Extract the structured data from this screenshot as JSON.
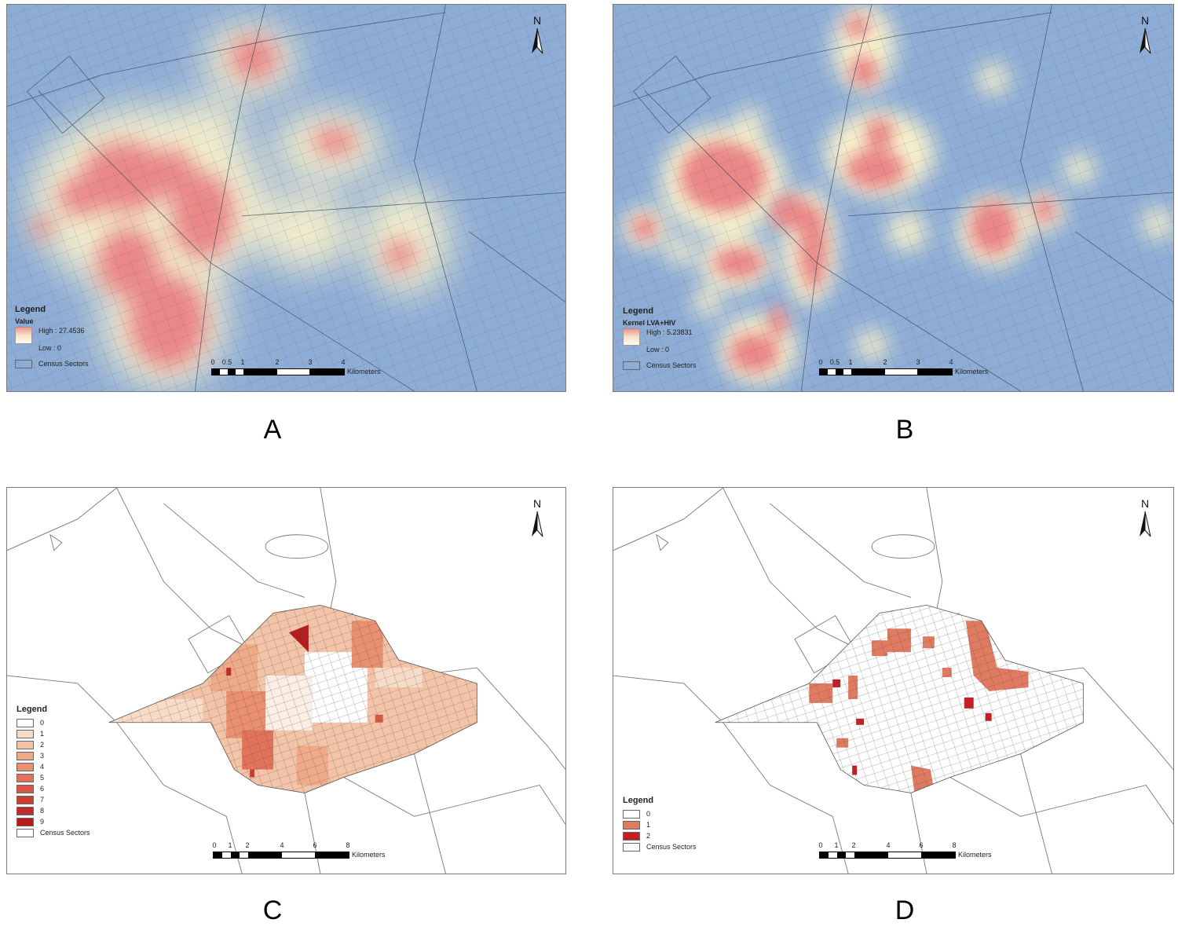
{
  "panels": [
    {
      "id": "A",
      "caption": "A",
      "legend": {
        "title": "Legend",
        "variable": "Value",
        "high": "High : 27.4536",
        "low": "Low : 0",
        "sectors": "Census Sectors"
      },
      "north": "N",
      "scale": {
        "ticks": [
          "0",
          "0.5",
          "1",
          "2",
          "3",
          "4"
        ],
        "unit": "Kilometers"
      }
    },
    {
      "id": "B",
      "caption": "B",
      "legend": {
        "title": "Legend",
        "variable": "Kernel LVA+HIV",
        "high": "High : 5.23831",
        "low": "Low : 0",
        "sectors": "Census Sectors"
      },
      "north": "N",
      "scale": {
        "ticks": [
          "0",
          "0.5",
          "1",
          "2",
          "3",
          "4"
        ],
        "unit": "Kilometers"
      }
    },
    {
      "id": "C",
      "caption": "C",
      "legend": {
        "title": "Legend",
        "classes": [
          "0",
          "1",
          "2",
          "3",
          "4",
          "5",
          "6",
          "7",
          "8",
          "9"
        ],
        "class_colors": [
          "#ffffff",
          "#f8dcc8",
          "#f4c4a8",
          "#efaa88",
          "#ea9070",
          "#e2725a",
          "#d85746",
          "#cc3c35",
          "#bf2a2a",
          "#b51c1c"
        ],
        "sectors": "Census Sectors"
      },
      "north": "N",
      "scale": {
        "ticks": [
          "0",
          "1",
          "2",
          "4",
          "6",
          "8"
        ],
        "unit": "Kilometers"
      }
    },
    {
      "id": "D",
      "caption": "D",
      "legend": {
        "title": "Legend",
        "classes": [
          "0",
          "1",
          "2"
        ],
        "class_colors": [
          "#ffffff",
          "#e07a60",
          "#c41f25"
        ],
        "sectors": "Census Sectors"
      },
      "north": "N",
      "scale": {
        "ticks": [
          "0",
          "1",
          "2",
          "4",
          "6",
          "8"
        ],
        "unit": "Kilometers"
      }
    }
  ],
  "colors": {
    "kernel_background": "#8eadd6",
    "kernel_high": "#e8858a",
    "kernel_mid": "#f7ecc4",
    "sector_line": "#3c4a5e"
  }
}
